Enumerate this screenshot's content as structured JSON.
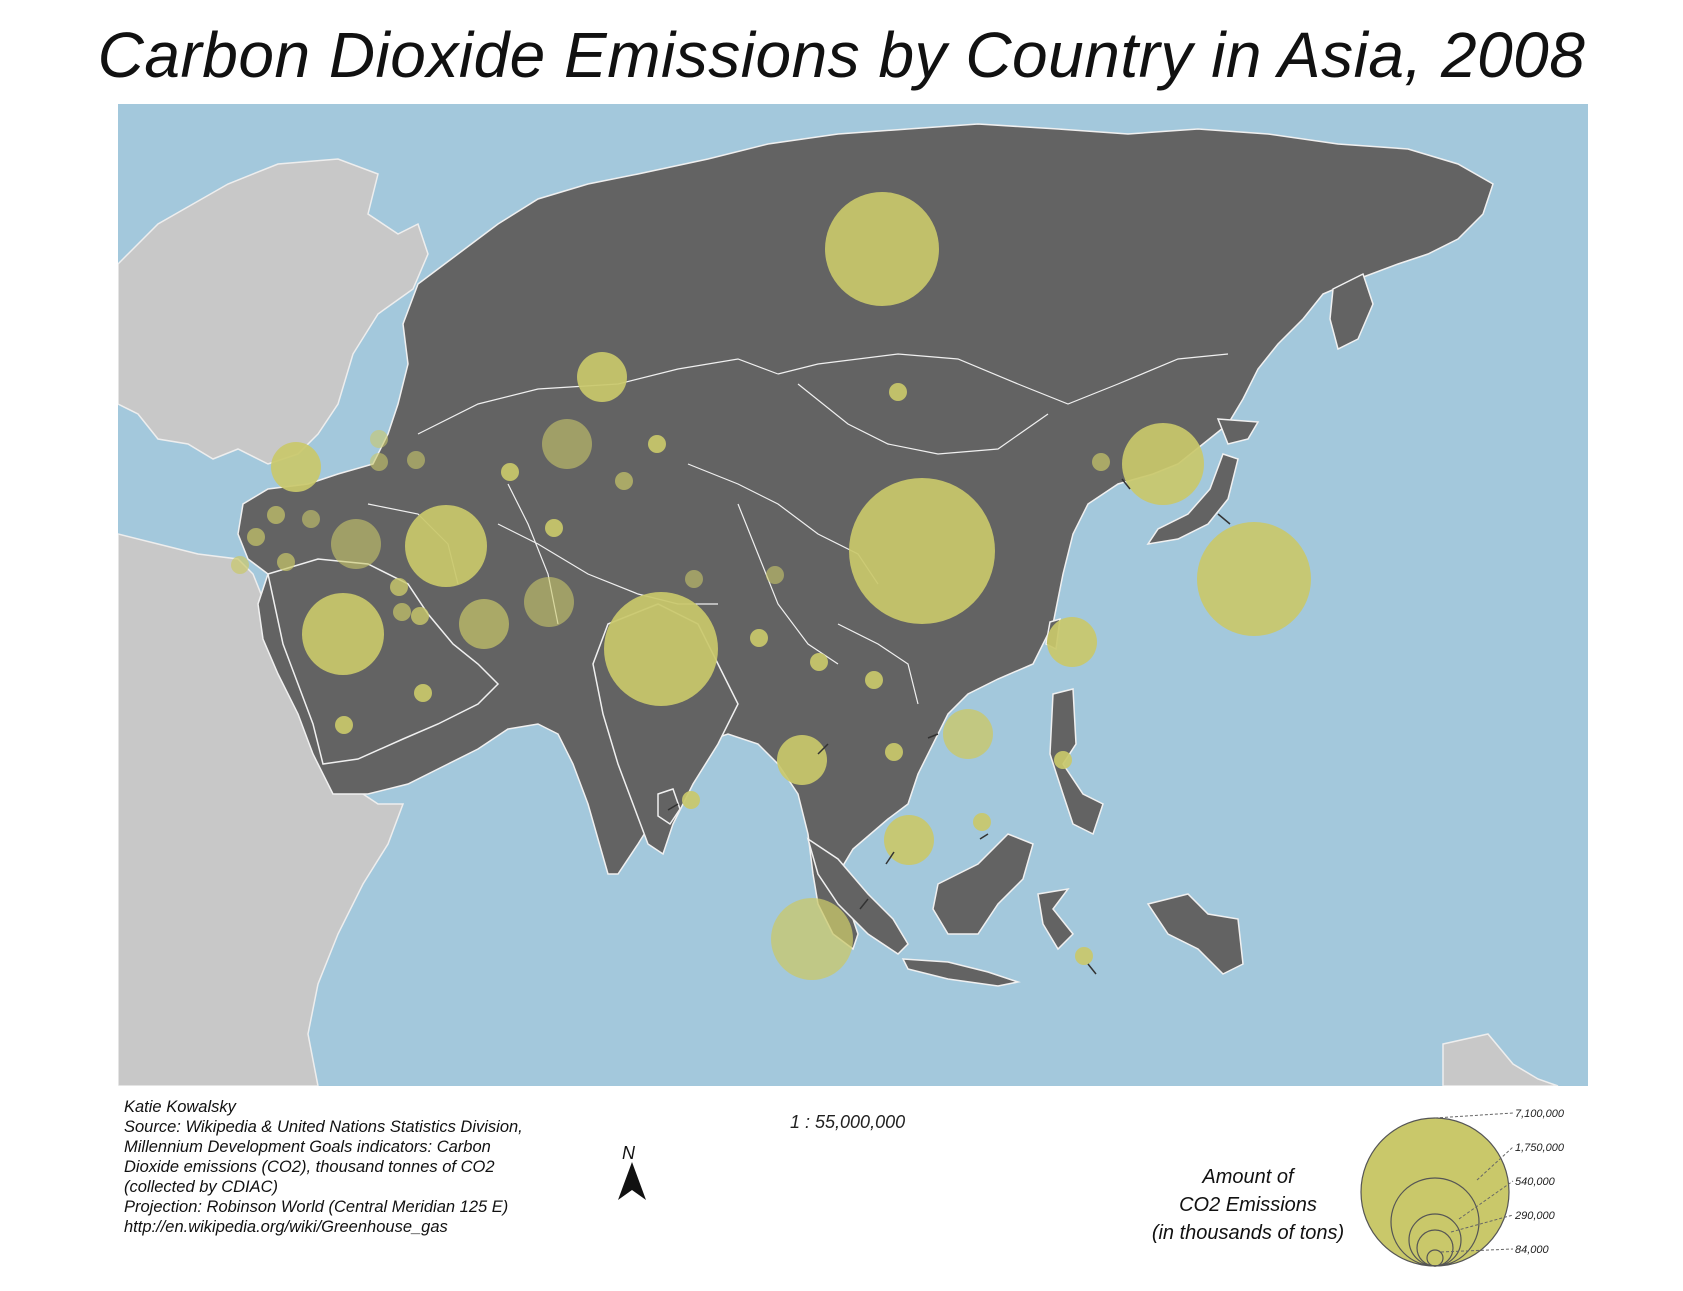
{
  "title": "Carbon Dioxide Emissions by Country in Asia, 2008",
  "credits": {
    "author": "Katie Kowalsky",
    "source_line1": "Source: Wikipedia & United Nations Statistics Division,",
    "source_line2": "Millennium Development Goals indicators: Carbon",
    "source_line3": "Dioxide emissions (CO2), thousand tonnes of CO2",
    "source_line4": "(collected by CDIAC)",
    "projection": "Projection: Robinson World (Central Meridian 125 E)",
    "url": "http://en.wikipedia.org/wiki/Greenhouse_gas"
  },
  "scale": "1 : 55,000,000",
  "north_arrow": "N",
  "legend": {
    "title_line1": "Amount of",
    "title_line2": "CO2  Emissions",
    "title_line3": "(in thousands of tons)",
    "classes": [
      "7,100,000",
      "1,750,000",
      "540,000",
      "290,000",
      "84,000"
    ]
  },
  "colors": {
    "water": "#a3c8dc",
    "asia_land": "#636363",
    "other_land": "#c8c8c8",
    "border": "#f0f0f0",
    "symbol": "#c9c86a"
  }
}
